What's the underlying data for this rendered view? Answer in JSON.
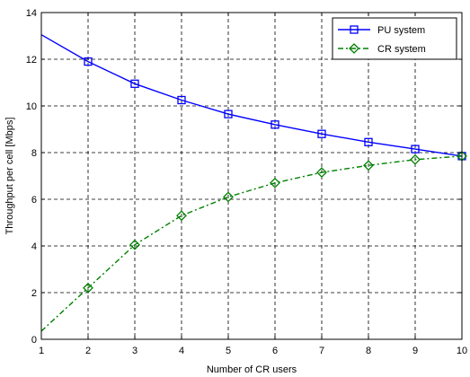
{
  "chart_data": {
    "type": "line",
    "xlabel": "Number of CR users",
    "ylabel": "Throughput per cell [Mbps]",
    "xlim": [
      1,
      10
    ],
    "ylim": [
      0,
      14
    ],
    "xticks": [
      1,
      2,
      3,
      4,
      5,
      6,
      7,
      8,
      9,
      10
    ],
    "yticks": [
      0,
      2,
      4,
      6,
      8,
      10,
      12,
      14
    ],
    "grid": true,
    "legend_position": "top-right",
    "series": [
      {
        "name": "PU system",
        "color": "#0000ff",
        "line_style": "solid",
        "marker": "square",
        "curve_start": {
          "x": 1,
          "y": 13.05
        },
        "x": [
          2,
          3,
          4,
          5,
          6,
          7,
          8,
          9,
          10
        ],
        "y": [
          11.9,
          10.95,
          10.25,
          9.65,
          9.2,
          8.8,
          8.45,
          8.15,
          7.85
        ]
      },
      {
        "name": "CR system",
        "color": "#008000",
        "line_style": "dash-dot",
        "marker": "diamond",
        "curve_start": {
          "x": 1,
          "y": 0.35
        },
        "x": [
          2,
          3,
          4,
          5,
          6,
          7,
          8,
          9,
          10
        ],
        "y": [
          2.2,
          4.05,
          5.3,
          6.1,
          6.7,
          7.15,
          7.45,
          7.7,
          7.85
        ]
      }
    ]
  }
}
